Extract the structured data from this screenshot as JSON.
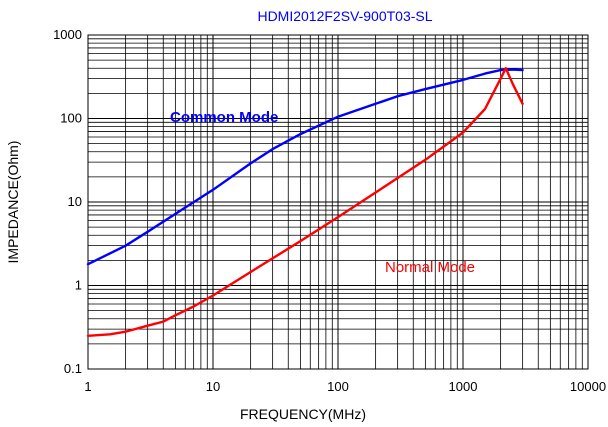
{
  "chart_data": {
    "type": "line",
    "title": "HDMI2012F2SV-900T03-SL",
    "xlabel": "FREQUENCY(MHz)",
    "ylabel": "IMPEDANCE(Ohm)",
    "xscale": "log",
    "yscale": "log",
    "xlim": [
      1,
      10000
    ],
    "ylim": [
      0.1,
      1000
    ],
    "x_ticks": [
      "1",
      "10",
      "100",
      "1000",
      "10000"
    ],
    "y_ticks": [
      "0.1",
      "1",
      "10",
      "100",
      "1000"
    ],
    "grid": true,
    "legend": "none",
    "series": [
      {
        "name": "Common Mode",
        "color": "#0000ff",
        "label_weight": "bold",
        "points": [
          [
            1,
            1.8
          ],
          [
            2,
            3.0
          ],
          [
            3,
            4.4
          ],
          [
            5,
            7.2
          ],
          [
            10,
            14
          ],
          [
            20,
            29
          ],
          [
            30,
            43
          ],
          [
            50,
            65
          ],
          [
            100,
            105
          ],
          [
            200,
            150
          ],
          [
            300,
            185
          ],
          [
            500,
            225
          ],
          [
            1000,
            290
          ],
          [
            1500,
            345
          ],
          [
            2000,
            380
          ],
          [
            2500,
            385
          ],
          [
            3000,
            380
          ]
        ]
      },
      {
        "name": "Normal Mode",
        "color": "#ff0000",
        "label_weight": "normal",
        "points": [
          [
            1,
            0.25
          ],
          [
            1.5,
            0.26
          ],
          [
            2,
            0.28
          ],
          [
            3,
            0.33
          ],
          [
            4,
            0.37
          ],
          [
            5,
            0.44
          ],
          [
            7,
            0.56
          ],
          [
            10,
            0.76
          ],
          [
            20,
            1.45
          ],
          [
            50,
            3.4
          ],
          [
            100,
            6.6
          ],
          [
            200,
            13
          ],
          [
            500,
            32
          ],
          [
            1000,
            68
          ],
          [
            1500,
            130
          ],
          [
            2000,
            300
          ],
          [
            2200,
            400
          ],
          [
            2500,
            260
          ],
          [
            3000,
            150
          ]
        ]
      }
    ]
  }
}
